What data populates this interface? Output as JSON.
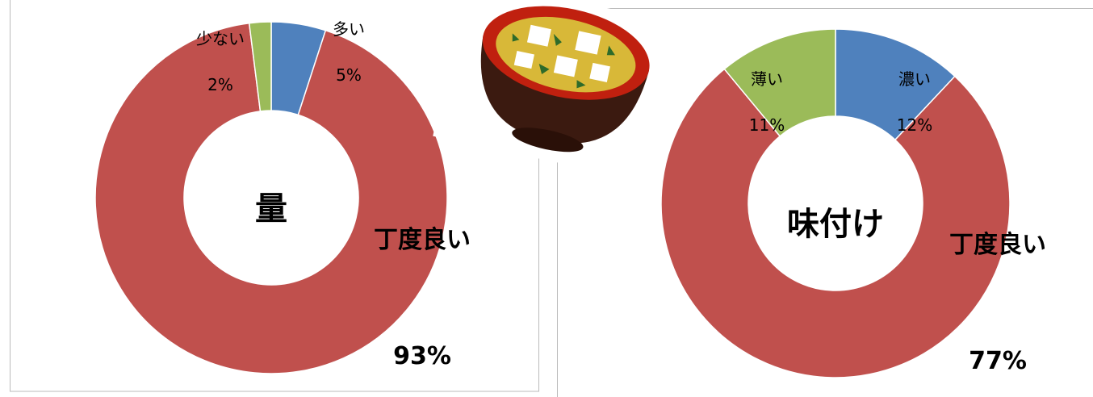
{
  "chart_data": [
    {
      "type": "donut",
      "title": "量",
      "categories": [
        "多い",
        "丁度良い",
        "少ない"
      ],
      "values": [
        5,
        93,
        2
      ],
      "value_labels": [
        "5%",
        "93%",
        "2%"
      ],
      "colors": [
        "#4f81bd",
        "#c0504d",
        "#9bbb59"
      ]
    },
    {
      "type": "donut",
      "title": "味付け",
      "categories": [
        "濃い",
        "丁度良い",
        "薄い"
      ],
      "values": [
        12,
        77,
        11
      ],
      "value_labels": [
        "12%",
        "77%",
        "11%"
      ],
      "colors": [
        "#4f81bd",
        "#c0504d",
        "#9bbb59"
      ]
    }
  ]
}
